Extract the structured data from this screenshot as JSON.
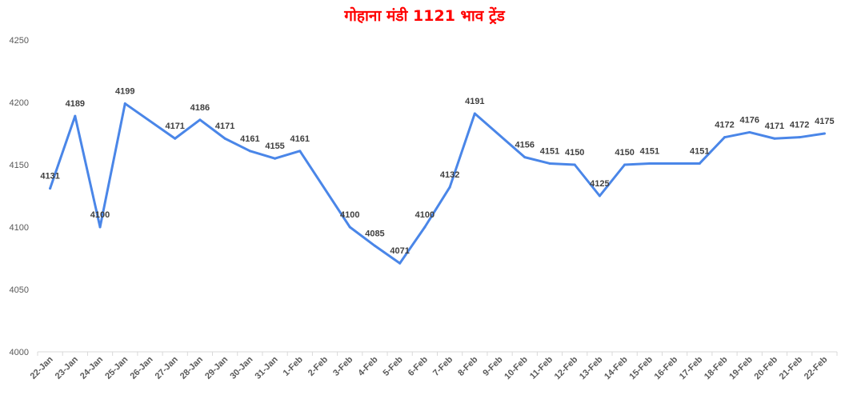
{
  "chart_data": {
    "type": "line",
    "title": "गोहाना मंडी 1121 भाव ट्रेंड",
    "xlabel": "",
    "ylabel": "",
    "ylim": [
      4000,
      4250
    ],
    "yticks": [
      4000,
      4050,
      4100,
      4150,
      4200,
      4250
    ],
    "grid": false,
    "legend": "none",
    "line_color": "#4a86e8",
    "title_color": "#ff0000",
    "categories": [
      "22-Jan",
      "23-Jan",
      "24-Jan",
      "25-Jan",
      "26-Jan",
      "27-Jan",
      "28-Jan",
      "29-Jan",
      "30-Jan",
      "31-Jan",
      "1-Feb",
      "2-Feb",
      "3-Feb",
      "4-Feb",
      "5-Feb",
      "6-Feb",
      "7-Feb",
      "8-Feb",
      "9-Feb",
      "10-Feb",
      "11-Feb",
      "12-Feb",
      "13-Feb",
      "14-Feb",
      "15-Feb",
      "16-Feb",
      "17-Feb",
      "18-Feb",
      "19-Feb",
      "20-Feb",
      "21-Feb",
      "22-Feb"
    ],
    "values": [
      4131,
      4189,
      4100,
      4199,
      null,
      4171,
      4186,
      4171,
      4161,
      4155,
      4161,
      null,
      4100,
      4085,
      4071,
      4100,
      4132,
      4191,
      null,
      4156,
      4151,
      4150,
      4125,
      4150,
      4151,
      null,
      4151,
      4172,
      4176,
      4171,
      4172,
      4175
    ],
    "series": [
      {
        "values": [
          4131,
          4189,
          4100,
          4199,
          null,
          4171,
          4186,
          4171,
          4161,
          4155,
          4161,
          null,
          4100,
          4085,
          4071,
          4100,
          4132,
          4191,
          null,
          4156,
          4151,
          4150,
          4125,
          4150,
          4151,
          null,
          4151,
          4172,
          4176,
          4171,
          4172,
          4175
        ]
      }
    ]
  }
}
